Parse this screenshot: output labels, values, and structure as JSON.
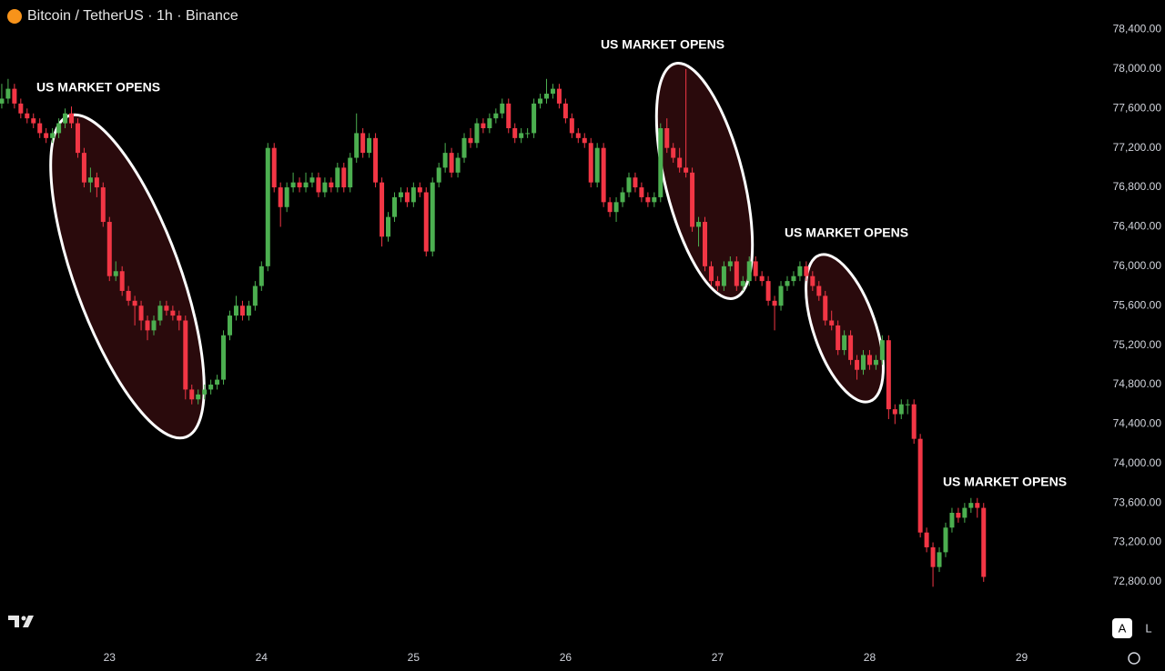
{
  "chart_data": {
    "type": "candlestick",
    "title": "Bitcoin / TetherUS · 1h · Binance",
    "annotations": [
      "US MARKET OPENS",
      "US MARKET OPENS",
      "US MARKET OPENS",
      "US MARKET OPENS"
    ],
    "controls": [
      "A",
      "L"
    ],
    "up_color": "#4caf50",
    "down_color": "#f23645",
    "grid": false,
    "xlim": [
      22.28,
      29.44
    ],
    "xticks": [
      23,
      24,
      25,
      26,
      27,
      28,
      29
    ],
    "ylim": [
      72200,
      78700
    ],
    "yticks": [
      {
        "value": 72800,
        "label": "72,800.00"
      },
      {
        "value": 73200,
        "label": "73,200.00"
      },
      {
        "value": 73600,
        "label": "73,600.00"
      },
      {
        "value": 74000,
        "label": "74,000.00"
      },
      {
        "value": 74400,
        "label": "74,400.00"
      },
      {
        "value": 74800,
        "label": "74,800.00"
      },
      {
        "value": 75200,
        "label": "75,200.00"
      },
      {
        "value": 75600,
        "label": "75,600.00"
      },
      {
        "value": 76000,
        "label": "76,000.00"
      },
      {
        "value": 76400,
        "label": "76,400.00"
      },
      {
        "value": 76800,
        "label": "76,800.00"
      },
      {
        "value": 77200,
        "label": "77,200.00"
      },
      {
        "value": 77600,
        "label": "77,600.00"
      },
      {
        "value": 78000,
        "label": "78,000.00"
      },
      {
        "value": 78400,
        "label": "78,400.00"
      }
    ],
    "x": [
      22.2917,
      22.3333,
      22.375,
      22.4167,
      22.4583,
      22.5,
      22.5417,
      22.5833,
      22.625,
      22.6667,
      22.7083,
      22.75,
      22.7917,
      22.8333,
      22.875,
      22.9167,
      22.9583,
      23,
      23.0417,
      23.0833,
      23.125,
      23.1667,
      23.2083,
      23.25,
      23.2917,
      23.3333,
      23.375,
      23.4167,
      23.4583,
      23.5,
      23.5417,
      23.5833,
      23.625,
      23.6667,
      23.7083,
      23.75,
      23.7917,
      23.8333,
      23.875,
      23.9167,
      23.9583,
      24,
      24.0417,
      24.0833,
      24.125,
      24.1667,
      24.2083,
      24.25,
      24.2917,
      24.3333,
      24.375,
      24.4167,
      24.4583,
      24.5,
      24.5417,
      24.5833,
      24.625,
      24.6667,
      24.7083,
      24.75,
      24.7917,
      24.8333,
      24.875,
      24.9167,
      24.9583,
      25,
      25.0417,
      25.0833,
      25.125,
      25.1667,
      25.2083,
      25.25,
      25.2917,
      25.3333,
      25.375,
      25.4167,
      25.4583,
      25.5,
      25.5417,
      25.5833,
      25.625,
      25.6667,
      25.7083,
      25.75,
      25.7917,
      25.8333,
      25.875,
      25.9167,
      25.9583,
      26,
      26.0417,
      26.0833,
      26.125,
      26.1667,
      26.2083,
      26.25,
      26.2917,
      26.3333,
      26.375,
      26.4167,
      26.4583,
      26.5,
      26.5417,
      26.5833,
      26.625,
      26.6667,
      26.7083,
      26.75,
      26.7917,
      26.8333,
      26.875,
      26.9167,
      26.9583,
      27,
      27.0417,
      27.0833,
      27.125,
      27.1667,
      27.2083,
      27.25,
      27.2917,
      27.3333,
      27.375,
      27.4167,
      27.4583,
      27.5,
      27.5417,
      27.5833,
      27.625,
      27.6667,
      27.7083,
      27.75,
      27.7917,
      27.8333,
      27.875,
      27.9167,
      27.9583,
      28,
      28.0417,
      28.0833,
      28.125,
      28.1667,
      28.2083,
      28.25,
      28.2917,
      28.3333,
      28.375,
      28.4167,
      28.4583,
      28.5,
      28.5417,
      28.5833,
      28.625,
      28.6667,
      28.7083,
      28.75
    ],
    "ohlc": [
      [
        77650,
        77850,
        77600,
        77700
      ],
      [
        77700,
        77900,
        77650,
        77800
      ],
      [
        77800,
        77850,
        77600,
        77650
      ],
      [
        77650,
        77700,
        77500,
        77550
      ],
      [
        77550,
        77600,
        77450,
        77500
      ],
      [
        77500,
        77550,
        77400,
        77450
      ],
      [
        77450,
        77500,
        77300,
        77350
      ],
      [
        77350,
        77400,
        77250,
        77300
      ],
      [
        77300,
        77400,
        77250,
        77350
      ],
      [
        77350,
        77500,
        77300,
        77450
      ],
      [
        77450,
        77600,
        77400,
        77550
      ],
      [
        77550,
        77620,
        77400,
        77450
      ],
      [
        77450,
        77500,
        77100,
        77150
      ],
      [
        77150,
        77200,
        76800,
        76850
      ],
      [
        76850,
        77000,
        76750,
        76900
      ],
      [
        76900,
        76950,
        76700,
        76800
      ],
      [
        76800,
        76850,
        76400,
        76450
      ],
      [
        76450,
        76500,
        75850,
        75900
      ],
      [
        75900,
        76050,
        75850,
        75950
      ],
      [
        75950,
        76000,
        75700,
        75750
      ],
      [
        75750,
        75800,
        75600,
        75650
      ],
      [
        75650,
        75700,
        75400,
        75600
      ],
      [
        75600,
        75650,
        75350,
        75450
      ],
      [
        75450,
        75500,
        75250,
        75350
      ],
      [
        75350,
        75500,
        75300,
        75450
      ],
      [
        75450,
        75650,
        75400,
        75600
      ],
      [
        75600,
        75650,
        75500,
        75550
      ],
      [
        75550,
        75600,
        75450,
        75500
      ],
      [
        75500,
        75550,
        75350,
        75450
      ],
      [
        75450,
        75500,
        74650,
        74750
      ],
      [
        74750,
        74800,
        74600,
        74650
      ],
      [
        74650,
        74750,
        74600,
        74700
      ],
      [
        74700,
        74800,
        74650,
        74750
      ],
      [
        74750,
        74850,
        74700,
        74800
      ],
      [
        74800,
        74900,
        74750,
        74850
      ],
      [
        74850,
        75350,
        74800,
        75300
      ],
      [
        75300,
        75550,
        75250,
        75500
      ],
      [
        75500,
        75700,
        75450,
        75600
      ],
      [
        75600,
        75650,
        75450,
        75500
      ],
      [
        75500,
        75650,
        75450,
        75600
      ],
      [
        75600,
        75850,
        75550,
        75800
      ],
      [
        75800,
        76050,
        75750,
        76000
      ],
      [
        76000,
        77250,
        75950,
        77200
      ],
      [
        77200,
        77250,
        76750,
        76800
      ],
      [
        76800,
        76850,
        76400,
        76600
      ],
      [
        76600,
        76850,
        76550,
        76800
      ],
      [
        76800,
        76950,
        76750,
        76850
      ],
      [
        76850,
        76900,
        76750,
        76800
      ],
      [
        76800,
        76950,
        76750,
        76850
      ],
      [
        76850,
        76950,
        76800,
        76900
      ],
      [
        76900,
        76950,
        76700,
        76750
      ],
      [
        76750,
        76900,
        76700,
        76850
      ],
      [
        76850,
        76900,
        76750,
        76800
      ],
      [
        76800,
        77050,
        76750,
        77000
      ],
      [
        77000,
        77050,
        76750,
        76800
      ],
      [
        76800,
        77150,
        76750,
        77100
      ],
      [
        77100,
        77550,
        77050,
        77350
      ],
      [
        77350,
        77400,
        77100,
        77150
      ],
      [
        77150,
        77350,
        77100,
        77300
      ],
      [
        77300,
        77350,
        76800,
        76850
      ],
      [
        76850,
        76900,
        76200,
        76300
      ],
      [
        76300,
        76550,
        76250,
        76500
      ],
      [
        76500,
        76750,
        76450,
        76700
      ],
      [
        76700,
        76800,
        76650,
        76750
      ],
      [
        76750,
        76800,
        76600,
        76650
      ],
      [
        76650,
        76850,
        76600,
        76800
      ],
      [
        76800,
        76850,
        76700,
        76750
      ],
      [
        76750,
        76800,
        76100,
        76150
      ],
      [
        76150,
        76900,
        76100,
        76850
      ],
      [
        76850,
        77050,
        76800,
        77000
      ],
      [
        77000,
        77250,
        76950,
        77150
      ],
      [
        77150,
        77200,
        76900,
        76950
      ],
      [
        76950,
        77150,
        76900,
        77100
      ],
      [
        77100,
        77350,
        77050,
        77300
      ],
      [
        77300,
        77400,
        77200,
        77250
      ],
      [
        77250,
        77500,
        77200,
        77450
      ],
      [
        77450,
        77500,
        77350,
        77400
      ],
      [
        77400,
        77550,
        77350,
        77500
      ],
      [
        77500,
        77600,
        77450,
        77550
      ],
      [
        77550,
        77700,
        77500,
        77650
      ],
      [
        77650,
        77700,
        77350,
        77400
      ],
      [
        77400,
        77450,
        77250,
        77300
      ],
      [
        77300,
        77400,
        77250,
        77350
      ],
      [
        77350,
        77400,
        77300,
        77350
      ],
      [
        77350,
        77700,
        77300,
        77650
      ],
      [
        77650,
        77750,
        77600,
        77700
      ],
      [
        77700,
        77900,
        77650,
        77750
      ],
      [
        77750,
        77850,
        77700,
        77800
      ],
      [
        77800,
        77850,
        77600,
        77650
      ],
      [
        77650,
        77700,
        77450,
        77500
      ],
      [
        77500,
        77550,
        77300,
        77350
      ],
      [
        77350,
        77400,
        77250,
        77300
      ],
      [
        77300,
        77350,
        77200,
        77250
      ],
      [
        77250,
        77300,
        76800,
        76850
      ],
      [
        76850,
        77250,
        76800,
        77200
      ],
      [
        77200,
        77250,
        76600,
        76650
      ],
      [
        76650,
        76700,
        76500,
        76550
      ],
      [
        76550,
        76700,
        76450,
        76650
      ],
      [
        76650,
        76800,
        76600,
        76750
      ],
      [
        76750,
        76950,
        76700,
        76900
      ],
      [
        76900,
        76950,
        76750,
        76800
      ],
      [
        76800,
        76850,
        76650,
        76700
      ],
      [
        76700,
        76750,
        76600,
        76650
      ],
      [
        76650,
        76750,
        76600,
        76700
      ],
      [
        76700,
        77450,
        76650,
        77400
      ],
      [
        77400,
        77500,
        77150,
        77200
      ],
      [
        77200,
        77250,
        77050,
        77100
      ],
      [
        77100,
        77200,
        76950,
        77000
      ],
      [
        77000,
        78000,
        76900,
        76950
      ],
      [
        76950,
        77000,
        76350,
        76400
      ],
      [
        76400,
        76500,
        76200,
        76450
      ],
      [
        76450,
        76500,
        75950,
        76000
      ],
      [
        76000,
        76050,
        75800,
        75850
      ],
      [
        75850,
        75900,
        75750,
        75800
      ],
      [
        75800,
        76050,
        75750,
        76000
      ],
      [
        76000,
        76100,
        75950,
        76050
      ],
      [
        76050,
        76100,
        75750,
        75800
      ],
      [
        75800,
        75900,
        75750,
        75850
      ],
      [
        75850,
        76100,
        75800,
        76050
      ],
      [
        76050,
        76100,
        75850,
        75900
      ],
      [
        75900,
        75950,
        75800,
        75850
      ],
      [
        75850,
        75900,
        75600,
        75650
      ],
      [
        75650,
        75700,
        75350,
        75600
      ],
      [
        75600,
        75850,
        75550,
        75800
      ],
      [
        75800,
        75900,
        75750,
        75850
      ],
      [
        75850,
        75950,
        75800,
        75900
      ],
      [
        75900,
        76050,
        75850,
        76000
      ],
      [
        76000,
        76050,
        75850,
        75900
      ],
      [
        75900,
        75950,
        75750,
        75800
      ],
      [
        75800,
        75850,
        75650,
        75700
      ],
      [
        75700,
        75750,
        75400,
        75450
      ],
      [
        75450,
        75550,
        75350,
        75400
      ],
      [
        75400,
        75450,
        75100,
        75150
      ],
      [
        75150,
        75350,
        75100,
        75300
      ],
      [
        75300,
        75350,
        75000,
        75050
      ],
      [
        75050,
        75100,
        74850,
        74950
      ],
      [
        74950,
        75150,
        74900,
        75100
      ],
      [
        75100,
        75150,
        74950,
        75000
      ],
      [
        75000,
        75100,
        74950,
        75050
      ],
      [
        75050,
        75300,
        75000,
        75250
      ],
      [
        75250,
        75300,
        74450,
        74550
      ],
      [
        74550,
        74600,
        74400,
        74500
      ],
      [
        74500,
        74650,
        74450,
        74600
      ],
      [
        74600,
        74650,
        74500,
        74600
      ],
      [
        74600,
        74650,
        74200,
        74250
      ],
      [
        74250,
        74300,
        73250,
        73300
      ],
      [
        73300,
        73350,
        73100,
        73150
      ],
      [
        73150,
        73200,
        72750,
        72950
      ],
      [
        72950,
        73150,
        72900,
        73100
      ],
      [
        73100,
        73400,
        73050,
        73350
      ],
      [
        73350,
        73550,
        73300,
        73500
      ],
      [
        73500,
        73550,
        73400,
        73450
      ],
      [
        73450,
        73600,
        73400,
        73550
      ],
      [
        73550,
        73650,
        73500,
        73600
      ],
      [
        73600,
        73650,
        73450,
        73550
      ],
      [
        73550,
        73600,
        72800,
        72850
      ]
    ]
  }
}
